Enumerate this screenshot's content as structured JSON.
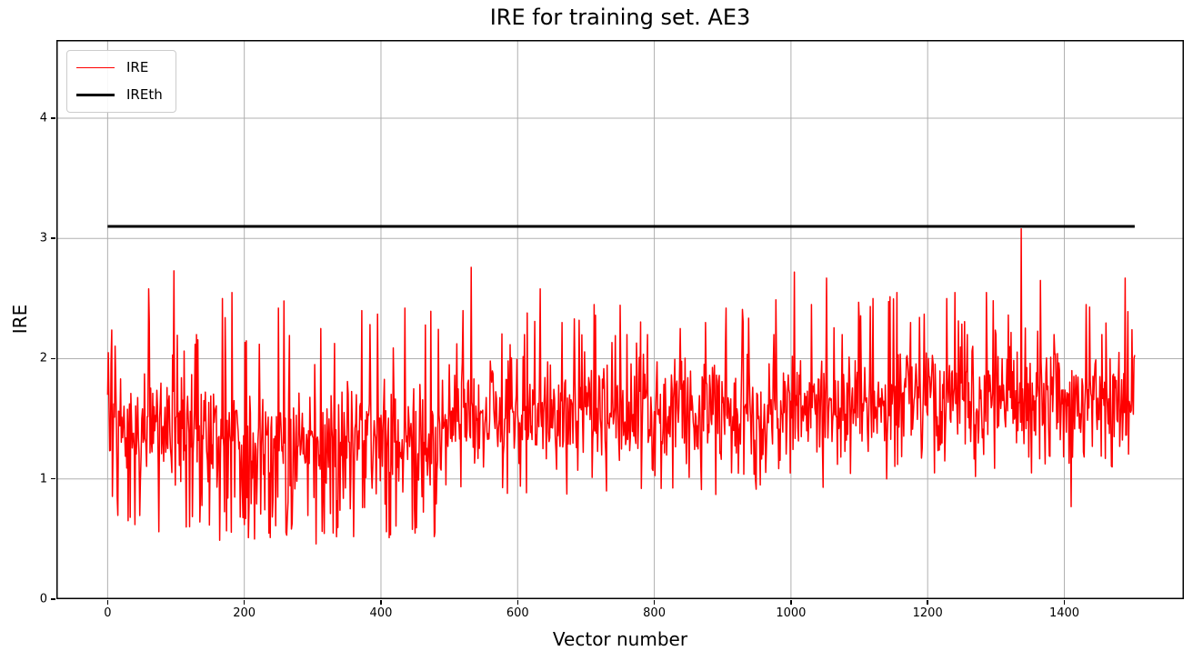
{
  "chart_data": {
    "type": "line",
    "title": "IRE for training set. AE3",
    "xlabel": "Vector number",
    "ylabel": "IRE",
    "xlim": [
      -75,
      1575
    ],
    "ylim": [
      0,
      4.65
    ],
    "xticks": [
      0,
      200,
      400,
      600,
      800,
      1000,
      1200,
      1400
    ],
    "yticks": [
      0,
      1,
      2,
      3,
      4
    ],
    "grid": true,
    "grid_color": "#b0b0b0",
    "axes_color": "#000000",
    "background_color": "#ffffff",
    "legend": {
      "position": "upper-left",
      "entries": [
        {
          "label": "IRE",
          "color": "#ff0000"
        },
        {
          "label": "IREth",
          "color": "#000000"
        }
      ]
    },
    "series": [
      {
        "name": "IRE",
        "color": "#ff0000",
        "line_width": 1.5,
        "n": 1504,
        "noise_seed": 7,
        "segments": [
          {
            "from": 0,
            "to": 160,
            "mean": 1.4,
            "jitter": 0.3,
            "spike_p": 0.035,
            "dip_p": 0.1,
            "peak_max": 2.35,
            "dip_min": 0.58
          },
          {
            "from": 160,
            "to": 490,
            "mean": 1.33,
            "jitter": 0.32,
            "spike_p": 0.035,
            "dip_p": 0.14,
            "peak_max": 2.4,
            "dip_min": 0.48
          },
          {
            "from": 490,
            "to": 800,
            "mean": 1.55,
            "jitter": 0.3,
            "spike_p": 0.045,
            "dip_p": 0.05,
            "peak_max": 2.45,
            "dip_min": 0.86
          },
          {
            "from": 800,
            "to": 1090,
            "mean": 1.6,
            "jitter": 0.3,
            "spike_p": 0.05,
            "dip_p": 0.05,
            "peak_max": 2.5,
            "dip_min": 0.9
          },
          {
            "from": 1090,
            "to": 1504,
            "mean": 1.66,
            "jitter": 0.3,
            "spike_p": 0.06,
            "dip_p": 0.045,
            "peak_max": 2.55,
            "dip_min": 0.98
          }
        ],
        "notable_points": [
          [
            1,
            2.05
          ],
          [
            40,
            0.62
          ],
          [
            60,
            2.58
          ],
          [
            75,
            0.56
          ],
          [
            97,
            2.73
          ],
          [
            115,
            0.6
          ],
          [
            130,
            2.2
          ],
          [
            168,
            2.5
          ],
          [
            182,
            2.55
          ],
          [
            200,
            0.62
          ],
          [
            222,
            2.12
          ],
          [
            250,
            2.42
          ],
          [
            258,
            2.48
          ],
          [
            270,
            0.63
          ],
          [
            305,
            0.46
          ],
          [
            312,
            2.25
          ],
          [
            330,
            0.55
          ],
          [
            360,
            0.52
          ],
          [
            372,
            2.4
          ],
          [
            395,
            2.37
          ],
          [
            408,
            0.56
          ],
          [
            435,
            2.42
          ],
          [
            450,
            0.55
          ],
          [
            465,
            2.28
          ],
          [
            478,
            0.52
          ],
          [
            500,
            1.95
          ],
          [
            520,
            2.4
          ],
          [
            532,
            2.76
          ],
          [
            560,
            1.98
          ],
          [
            585,
            0.88
          ],
          [
            610,
            2.2
          ],
          [
            633,
            2.58
          ],
          [
            665,
            2.3
          ],
          [
            690,
            2.32
          ],
          [
            712,
            2.45
          ],
          [
            730,
            0.9
          ],
          [
            760,
            2.2
          ],
          [
            790,
            2.2
          ],
          [
            810,
            0.92
          ],
          [
            838,
            2.25
          ],
          [
            875,
            2.3
          ],
          [
            890,
            0.87
          ],
          [
            905,
            2.42
          ],
          [
            930,
            2.3
          ],
          [
            955,
            0.95
          ],
          [
            975,
            2.2
          ],
          [
            1005,
            2.72
          ],
          [
            1030,
            2.45
          ],
          [
            1052,
            2.67
          ],
          [
            1075,
            2.2
          ],
          [
            1100,
            2.3
          ],
          [
            1120,
            2.5
          ],
          [
            1140,
            1.0
          ],
          [
            1155,
            2.55
          ],
          [
            1175,
            2.3
          ],
          [
            1195,
            2.37
          ],
          [
            1210,
            1.05
          ],
          [
            1228,
            2.5
          ],
          [
            1240,
            2.55
          ],
          [
            1258,
            2.2
          ],
          [
            1270,
            1.02
          ],
          [
            1286,
            2.55
          ],
          [
            1300,
            2.2
          ],
          [
            1320,
            2.1
          ],
          [
            1337,
            3.08
          ],
          [
            1352,
            1.05
          ],
          [
            1365,
            2.65
          ],
          [
            1385,
            2.2
          ],
          [
            1410,
            0.77
          ],
          [
            1432,
            2.45
          ],
          [
            1455,
            2.2
          ],
          [
            1470,
            1.1
          ],
          [
            1489,
            2.67
          ],
          [
            1503,
            2.03
          ]
        ]
      },
      {
        "name": "IREth",
        "color": "#000000",
        "line_width": 3,
        "threshold": 3.1,
        "x_range": [
          0,
          1503
        ]
      }
    ]
  }
}
